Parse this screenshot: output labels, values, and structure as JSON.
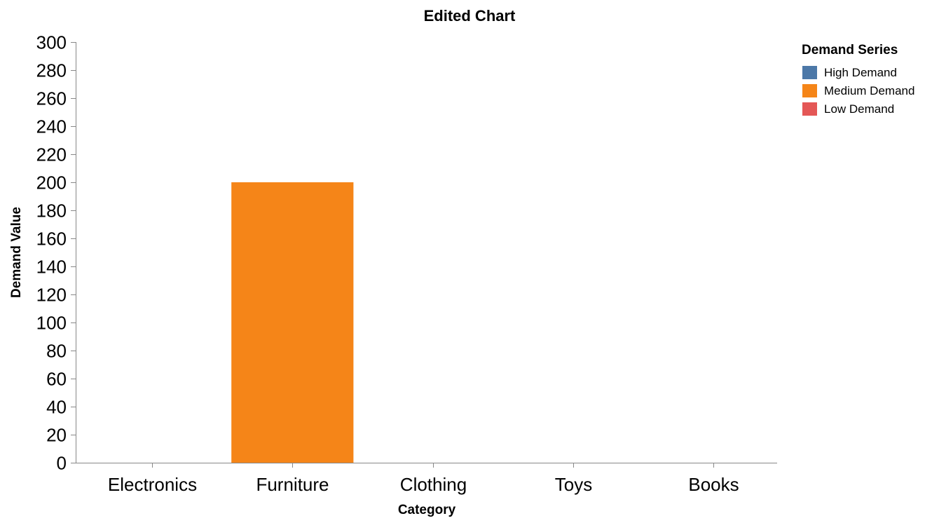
{
  "chart_data": {
    "type": "bar",
    "title": "Edited Chart",
    "xlabel": "Category",
    "ylabel": "Demand Value",
    "categories": [
      "Electronics",
      "Furniture",
      "Clothing",
      "Toys",
      "Books"
    ],
    "ylim": [
      0,
      300
    ],
    "yticks": [
      0,
      20,
      40,
      60,
      80,
      100,
      120,
      140,
      160,
      180,
      200,
      220,
      240,
      260,
      280,
      300
    ],
    "grid": false,
    "legend": {
      "title": "Demand Series",
      "placement": "top-right"
    },
    "series": [
      {
        "name": "High Demand",
        "color": "#4c78a8",
        "values": [
          0,
          0,
          0,
          0,
          0
        ]
      },
      {
        "name": "Medium Demand",
        "color": "#f58518",
        "values": [
          0,
          200,
          0,
          0,
          0
        ]
      },
      {
        "name": "Low Demand",
        "color": "#e45756",
        "values": [
          0,
          0,
          0,
          0,
          0
        ]
      }
    ]
  }
}
